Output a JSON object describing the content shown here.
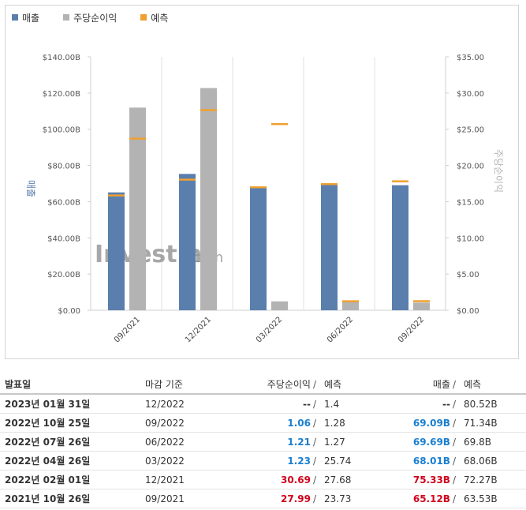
{
  "legend": {
    "revenue": "매출",
    "eps": "주당순이익",
    "forecast": "예측"
  },
  "colors": {
    "revenue": "#5a7fad",
    "eps": "#b3b3b3",
    "forecast": "#f0a030",
    "up": "#1a7fd0",
    "down": "#d0021b",
    "neutral": "#333333"
  },
  "watermark": {
    "brand": "Investing",
    "suffix": ".com"
  },
  "chart_data": {
    "type": "bar",
    "categories": [
      "09/2021",
      "12/2021",
      "03/2022",
      "06/2022",
      "09/2022"
    ],
    "series": [
      {
        "name": "매출",
        "axis": "left",
        "values": [
          65.12,
          75.33,
          68.01,
          69.69,
          69.09
        ],
        "forecast": [
          63.53,
          72.27,
          68.06,
          69.8,
          71.34
        ]
      },
      {
        "name": "주당순이익",
        "axis": "right",
        "values": [
          27.99,
          30.69,
          1.23,
          1.21,
          1.06
        ],
        "forecast": [
          23.73,
          27.68,
          25.74,
          1.27,
          1.28
        ]
      }
    ],
    "left_axis": {
      "label": "매출",
      "ticks": [
        "$0.00",
        "$20.00B",
        "$40.00B",
        "$60.00B",
        "$80.00B",
        "$100.00B",
        "$120.00B",
        "$140.00B"
      ],
      "range": [
        0,
        140
      ]
    },
    "right_axis": {
      "label": "주당순이익",
      "ticks": [
        "$0.00",
        "$5.00",
        "$10.00",
        "$15.00",
        "$20.00",
        "$25.00",
        "$30.00",
        "$35.00"
      ],
      "range": [
        0,
        35
      ]
    },
    "grid": "vertical"
  },
  "table": {
    "headers": {
      "date": "발표일",
      "period": "마감 기준",
      "eps": "주당순이익",
      "eps_sep": "/",
      "eps_forecast": "예측",
      "revenue": "매출",
      "rev_sep": "/",
      "rev_forecast": "예측"
    },
    "rows": [
      {
        "date": "2023년 01월 31일",
        "period": "12/2022",
        "eps": "--",
        "eps_forecast": "1.4",
        "revenue": "--",
        "rev_forecast": "80.52B",
        "eps_status": "neutral",
        "rev_status": "neutral",
        "sep": "/"
      },
      {
        "date": "2022년 10월 25일",
        "period": "09/2022",
        "eps": "1.06",
        "eps_forecast": "1.28",
        "revenue": "69.09B",
        "rev_forecast": "71.34B",
        "eps_status": "up",
        "rev_status": "up",
        "sep": "/"
      },
      {
        "date": "2022년 07월 26일",
        "period": "06/2022",
        "eps": "1.21",
        "eps_forecast": "1.27",
        "revenue": "69.69B",
        "rev_forecast": "69.8B",
        "eps_status": "up",
        "rev_status": "up",
        "sep": "/"
      },
      {
        "date": "2022년 04월 26일",
        "period": "03/2022",
        "eps": "1.23",
        "eps_forecast": "25.74",
        "revenue": "68.01B",
        "rev_forecast": "68.06B",
        "eps_status": "up",
        "rev_status": "up",
        "sep": "/"
      },
      {
        "date": "2022년 02월 01일",
        "period": "12/2021",
        "eps": "30.69",
        "eps_forecast": "27.68",
        "revenue": "75.33B",
        "rev_forecast": "72.27B",
        "eps_status": "down",
        "rev_status": "down",
        "sep": "/"
      },
      {
        "date": "2021년 10월 26일",
        "period": "09/2021",
        "eps": "27.99",
        "eps_forecast": "23.73",
        "revenue": "65.12B",
        "rev_forecast": "63.53B",
        "eps_status": "down",
        "rev_status": "down",
        "sep": "/"
      }
    ]
  }
}
